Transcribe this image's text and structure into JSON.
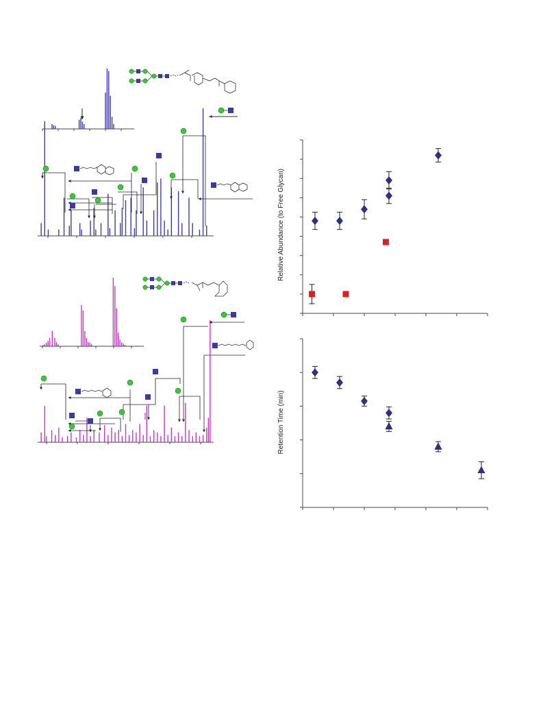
{
  "colors": {
    "blue_spectrum": "#3a3ab0",
    "magenta_spectrum": "#cc33cc",
    "hexnac_square": "#3a3aa0",
    "hexose_circle": "#33cc33",
    "diamond_marker": "#2f2f8f",
    "triangle_marker": "#2f2f8f",
    "red_marker": "#e02020",
    "axis": "#444444"
  },
  "chart_data": [
    {
      "type": "bar",
      "panel": "ms-spectrum-1",
      "spectrum_color": "blue",
      "title": "",
      "xlabel": "",
      "ylabel": "",
      "inset": {
        "x": [
          0.05,
          0.07,
          0.09,
          0.38,
          0.4,
          0.42,
          0.44,
          0.7,
          0.72,
          0.74,
          0.76,
          0.78,
          0.8
        ],
        "y": [
          0.08,
          0.06,
          0.05,
          0.15,
          0.18,
          0.12,
          0.08,
          0.6,
          1.0,
          0.96,
          0.55,
          0.2,
          0.08
        ]
      },
      "peaks": {
        "x": [
          0.02,
          0.04,
          0.06,
          0.12,
          0.15,
          0.18,
          0.19,
          0.24,
          0.25,
          0.3,
          0.32,
          0.33,
          0.36,
          0.4,
          0.41,
          0.44,
          0.47,
          0.48,
          0.5,
          0.53,
          0.55,
          0.56,
          0.6,
          0.62,
          0.66,
          0.68,
          0.7,
          0.72,
          0.74,
          0.76,
          0.8,
          0.82,
          0.86,
          0.88,
          0.92,
          0.94,
          0.96
        ],
        "y": [
          0.1,
          0.9,
          0.05,
          0.05,
          0.3,
          0.08,
          0.2,
          0.1,
          0.05,
          0.12,
          0.22,
          0.05,
          0.1,
          0.33,
          0.06,
          0.2,
          0.1,
          0.22,
          0.28,
          0.3,
          0.06,
          0.2,
          0.38,
          0.12,
          0.2,
          0.42,
          0.45,
          0.12,
          0.05,
          0.38,
          0.35,
          0.1,
          0.3,
          0.1,
          0.05,
          1.0,
          0.08
        ]
      }
    },
    {
      "type": "bar",
      "panel": "ms-spectrum-2",
      "spectrum_color": "magenta",
      "title": "",
      "xlabel": "",
      "ylabel": "",
      "inset": {
        "x": [
          0.04,
          0.06,
          0.08,
          0.1,
          0.12,
          0.15,
          0.18,
          0.2,
          0.22,
          0.5,
          0.52,
          0.54,
          0.56,
          0.58,
          0.6,
          0.62,
          0.88,
          0.9,
          0.92,
          0.94,
          0.96,
          0.98,
          1.0,
          1.02
        ],
        "y": [
          0.02,
          0.03,
          0.05,
          0.08,
          0.12,
          0.22,
          0.12,
          0.06,
          0.03,
          0.6,
          0.52,
          0.22,
          0.12,
          0.06,
          0.05,
          0.03,
          1.0,
          0.88,
          0.55,
          0.2,
          0.1,
          0.06,
          0.04,
          0.02
        ]
      },
      "peaks": {
        "x": [
          0.02,
          0.04,
          0.05,
          0.08,
          0.1,
          0.12,
          0.14,
          0.17,
          0.19,
          0.22,
          0.24,
          0.26,
          0.28,
          0.3,
          0.32,
          0.35,
          0.38,
          0.4,
          0.42,
          0.44,
          0.46,
          0.48,
          0.5,
          0.52,
          0.54,
          0.56,
          0.58,
          0.6,
          0.62,
          0.64,
          0.66,
          0.68,
          0.7,
          0.72,
          0.74,
          0.76,
          0.78,
          0.8,
          0.82,
          0.84,
          0.86,
          0.88,
          0.9,
          0.92,
          0.94,
          0.96,
          0.97,
          0.98
        ],
        "y": [
          0.08,
          0.3,
          0.05,
          0.1,
          0.06,
          0.12,
          0.04,
          0.05,
          0.08,
          0.04,
          0.1,
          0.06,
          0.2,
          0.05,
          0.1,
          0.08,
          0.14,
          0.06,
          0.12,
          0.08,
          0.1,
          0.05,
          0.15,
          0.06,
          0.1,
          0.08,
          0.15,
          0.06,
          0.3,
          0.05,
          0.1,
          0.08,
          0.05,
          0.3,
          0.06,
          0.12,
          0.05,
          0.08,
          0.05,
          0.32,
          0.1,
          0.05,
          0.08,
          0.05,
          0.06,
          0.12,
          0.2,
          1.0
        ]
      }
    },
    {
      "type": "scatter",
      "panel": "relative-abundance",
      "title": "",
      "xlabel": "",
      "ylabel": "Relative Abundance (to Free Glycan)",
      "xlim": [
        0,
        6
      ],
      "ylim": [
        0,
        9
      ],
      "grid": false,
      "series": [
        {
          "marker": "diamond",
          "x": [
            0.4,
            1.2,
            2.0,
            2.8,
            2.8,
            4.4
          ],
          "y": [
            4.8,
            4.8,
            5.4,
            6.9,
            6.1,
            8.2
          ],
          "err": [
            0.45,
            0.45,
            0.5,
            0.45,
            0.4,
            0.35
          ]
        },
        {
          "marker": "square",
          "x": [
            0.3,
            1.4,
            2.7
          ],
          "y": [
            1.0,
            1.0,
            3.7
          ],
          "err": [
            0.5,
            0,
            0
          ]
        }
      ]
    },
    {
      "type": "scatter",
      "panel": "retention-time",
      "title": "",
      "xlabel": "",
      "ylabel": "Retention Time (min)",
      "xlim": [
        0,
        6
      ],
      "ylim": [
        0,
        5
      ],
      "grid": false,
      "series": [
        {
          "marker": "diamond",
          "x": [
            0.4,
            1.2,
            2.0,
            2.8
          ],
          "y": [
            4.0,
            3.7,
            3.15,
            2.8
          ],
          "err": [
            0.18,
            0.18,
            0.15,
            0.18
          ]
        },
        {
          "marker": "triangle",
          "x": [
            2.8,
            4.4,
            5.8
          ],
          "y": [
            2.4,
            1.8,
            1.1
          ],
          "err": [
            0.15,
            0.15,
            0.25
          ]
        }
      ]
    }
  ]
}
